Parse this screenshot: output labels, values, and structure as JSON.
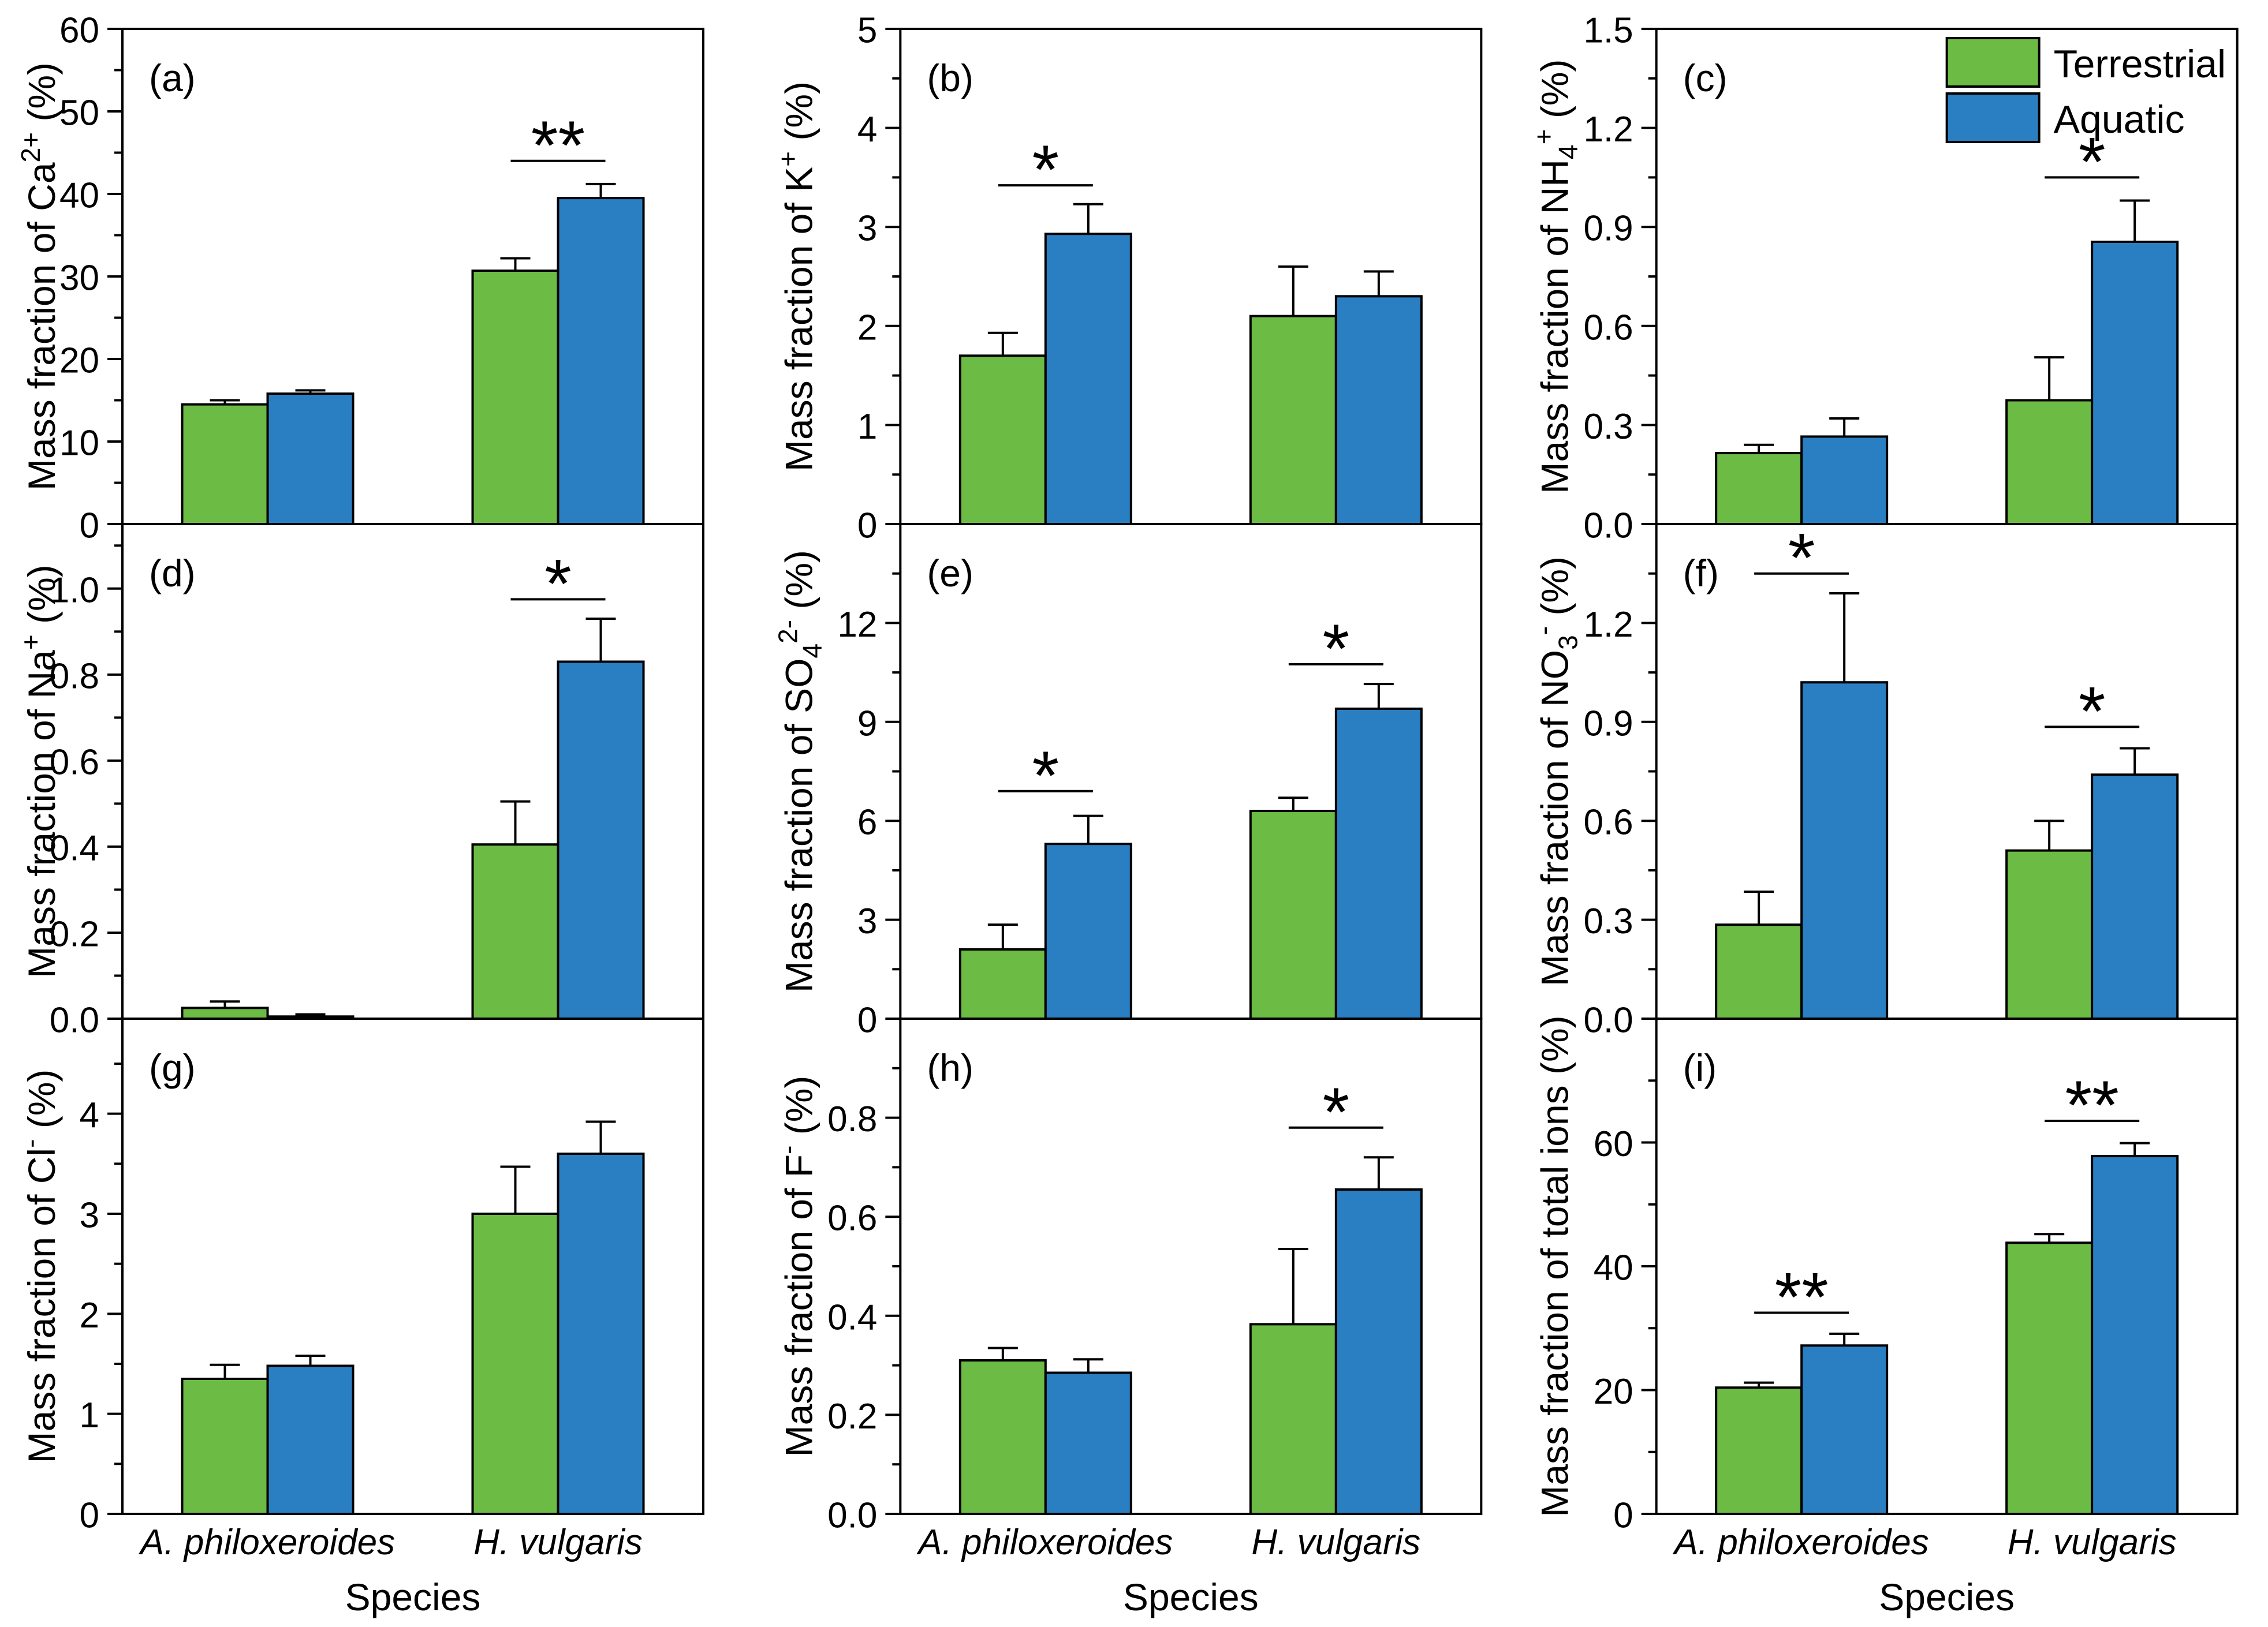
{
  "figure": {
    "xlabel": "Species",
    "categories": [
      "A. philoxeroides",
      "H. vulgaris"
    ],
    "legend": {
      "panel": "(c)",
      "entries": [
        {
          "label": "Terrestrial",
          "color": "#6CBB45"
        },
        {
          "label": "Aquatic",
          "color": "#2A7FC3"
        }
      ]
    },
    "colors": {
      "terrestrial": "#6CBB45",
      "aquatic": "#2A7FC3",
      "axis": "#000000",
      "background": "#FFFFFF"
    }
  },
  "chart_data": [
    {
      "panel": "(a)",
      "id": "ca",
      "type": "bar",
      "ylabel_segments": [
        [
          "Mass fraction of Ca",
          "normal"
        ],
        [
          "2+",
          "sup"
        ],
        [
          " (%)",
          "normal"
        ]
      ],
      "ylim": [
        0,
        60
      ],
      "ytick_values": [
        0,
        10,
        20,
        30,
        40,
        50,
        60
      ],
      "ytick_labels": [
        "0",
        "10",
        "20",
        "30",
        "40",
        "50",
        "60"
      ],
      "minor_step": 5,
      "categories": [
        "A. philoxeroides",
        "H. vulgaris"
      ],
      "series": [
        {
          "name": "Terrestrial",
          "values": [
            14.5,
            30.7
          ],
          "errors": [
            0.5,
            1.5
          ]
        },
        {
          "name": "Aquatic",
          "values": [
            15.8,
            39.5
          ],
          "errors": [
            0.4,
            1.7
          ]
        }
      ],
      "significance": [
        {
          "group": 1,
          "label": "**",
          "line_y": 44
        }
      ]
    },
    {
      "panel": "(b)",
      "id": "k",
      "type": "bar",
      "ylabel_segments": [
        [
          "Mass fraction of K",
          "normal"
        ],
        [
          "+",
          "sup"
        ],
        [
          " (%)",
          "normal"
        ]
      ],
      "ylim": [
        0,
        5
      ],
      "ytick_values": [
        0,
        1,
        2,
        3,
        4,
        5
      ],
      "ytick_labels": [
        "0",
        "1",
        "2",
        "3",
        "4",
        "5"
      ],
      "minor_step": 0.5,
      "categories": [
        "A. philoxeroides",
        "H. vulgaris"
      ],
      "series": [
        {
          "name": "Terrestrial",
          "values": [
            1.7,
            2.1
          ],
          "errors": [
            0.23,
            0.5
          ]
        },
        {
          "name": "Aquatic",
          "values": [
            2.93,
            2.3
          ],
          "errors": [
            0.3,
            0.25
          ]
        }
      ],
      "significance": [
        {
          "group": 0,
          "label": "*",
          "line_y": 3.42
        }
      ]
    },
    {
      "panel": "(c)",
      "id": "nh4",
      "type": "bar",
      "ylabel_segments": [
        [
          "Mass fraction of NH",
          "normal"
        ],
        [
          "4",
          "sub"
        ],
        [
          "+",
          "sup"
        ],
        [
          " (%)",
          "normal"
        ]
      ],
      "ylim": [
        0,
        1.5
      ],
      "ytick_values": [
        0,
        0.3,
        0.6,
        0.9,
        1.2,
        1.5
      ],
      "ytick_labels": [
        "0.0",
        "0.3",
        "0.6",
        "0.9",
        "1.2",
        "1.5"
      ],
      "minor_step": 0.15,
      "categories": [
        "A. philoxeroides",
        "H. vulgaris"
      ],
      "series": [
        {
          "name": "Terrestrial",
          "values": [
            0.215,
            0.375
          ],
          "errors": [
            0.025,
            0.13
          ]
        },
        {
          "name": "Aquatic",
          "values": [
            0.265,
            0.855
          ],
          "errors": [
            0.055,
            0.125
          ]
        }
      ],
      "significance": [
        {
          "group": 1,
          "label": "*",
          "line_y": 1.05
        }
      ]
    },
    {
      "panel": "(d)",
      "id": "na",
      "type": "bar",
      "ylabel_segments": [
        [
          "Mass fraction of Na",
          "normal"
        ],
        [
          "+",
          "sup"
        ],
        [
          " (%)",
          "normal"
        ]
      ],
      "ylim": [
        0,
        1.15
      ],
      "ytick_values": [
        0,
        0.2,
        0.4,
        0.6,
        0.8,
        1.0
      ],
      "ytick_labels": [
        "0.0",
        "0.2",
        "0.4",
        "0.6",
        "0.8",
        "1.0"
      ],
      "minor_step": 0.1,
      "categories": [
        "A. philoxeroides",
        "H. vulgaris"
      ],
      "series": [
        {
          "name": "Terrestrial",
          "values": [
            0.025,
            0.405
          ],
          "errors": [
            0.015,
            0.1
          ]
        },
        {
          "name": "Aquatic",
          "values": [
            0.005,
            0.83
          ],
          "errors": [
            0.005,
            0.1
          ]
        }
      ],
      "significance": [
        {
          "group": 1,
          "label": "*",
          "line_y": 0.975
        }
      ]
    },
    {
      "panel": "(e)",
      "id": "so4",
      "type": "bar",
      "ylabel_segments": [
        [
          "Mass fraction of SO",
          "normal"
        ],
        [
          "4",
          "sub"
        ],
        [
          "2-",
          "sup"
        ],
        [
          " (%)",
          "normal"
        ]
      ],
      "ylim": [
        0,
        15
      ],
      "ytick_values": [
        0,
        3,
        6,
        9,
        12
      ],
      "ytick_labels": [
        "0",
        "3",
        "6",
        "9",
        "12"
      ],
      "minor_step": 1.5,
      "categories": [
        "A. philoxeroides",
        "H. vulgaris"
      ],
      "series": [
        {
          "name": "Terrestrial",
          "values": [
            2.1,
            6.3
          ],
          "errors": [
            0.75,
            0.4
          ]
        },
        {
          "name": "Aquatic",
          "values": [
            5.3,
            9.4
          ],
          "errors": [
            0.85,
            0.75
          ]
        }
      ],
      "significance": [
        {
          "group": 0,
          "label": "*",
          "line_y": 6.9
        },
        {
          "group": 1,
          "label": "*",
          "line_y": 10.75
        }
      ]
    },
    {
      "panel": "(f)",
      "id": "no3",
      "type": "bar",
      "ylabel_segments": [
        [
          "Mass fraction of NO",
          "normal"
        ],
        [
          "3",
          "sub"
        ],
        [
          "-",
          "sup"
        ],
        [
          " (%)",
          "normal"
        ]
      ],
      "ylim": [
        0,
        1.5
      ],
      "ytick_values": [
        0,
        0.3,
        0.6,
        0.9,
        1.2
      ],
      "ytick_labels": [
        "0.0",
        "0.3",
        "0.6",
        "0.9",
        "1.2"
      ],
      "minor_step": 0.15,
      "categories": [
        "A. philoxeroides",
        "H. vulgaris"
      ],
      "series": [
        {
          "name": "Terrestrial",
          "values": [
            0.285,
            0.51
          ],
          "errors": [
            0.1,
            0.09
          ]
        },
        {
          "name": "Aquatic",
          "values": [
            1.02,
            0.74
          ],
          "errors": [
            0.27,
            0.08
          ]
        }
      ],
      "significance": [
        {
          "group": 0,
          "label": "*",
          "line_y": 1.35
        },
        {
          "group": 1,
          "label": "*",
          "line_y": 0.885
        }
      ]
    },
    {
      "panel": "(g)",
      "id": "cl",
      "type": "bar",
      "ylabel_segments": [
        [
          "Mass fraction of Cl",
          "normal"
        ],
        [
          "-",
          "sup"
        ],
        [
          " (%)",
          "normal"
        ]
      ],
      "ylim": [
        0,
        4.95
      ],
      "ytick_values": [
        0,
        1,
        2,
        3,
        4
      ],
      "ytick_labels": [
        "0",
        "1",
        "2",
        "3",
        "4"
      ],
      "minor_step": 0.5,
      "categories": [
        "A. philoxeroides",
        "H. vulgaris"
      ],
      "series": [
        {
          "name": "Terrestrial",
          "values": [
            1.35,
            3.0
          ],
          "errors": [
            0.14,
            0.47
          ]
        },
        {
          "name": "Aquatic",
          "values": [
            1.48,
            3.6
          ],
          "errors": [
            0.1,
            0.32
          ]
        }
      ],
      "significance": []
    },
    {
      "panel": "(h)",
      "id": "f",
      "type": "bar",
      "ylabel_segments": [
        [
          "Mass fraction of F",
          "normal"
        ],
        [
          "-",
          "sup"
        ],
        [
          " (%)",
          "normal"
        ]
      ],
      "ylim": [
        0,
        1.0
      ],
      "ytick_values": [
        0,
        0.2,
        0.4,
        0.6,
        0.8
      ],
      "ytick_labels": [
        "0.0",
        "0.2",
        "0.4",
        "0.6",
        "0.8"
      ],
      "minor_step": 0.1,
      "categories": [
        "A. philoxeroides",
        "H. vulgaris"
      ],
      "series": [
        {
          "name": "Terrestrial",
          "values": [
            0.31,
            0.383
          ],
          "errors": [
            0.025,
            0.152
          ]
        },
        {
          "name": "Aquatic",
          "values": [
            0.285,
            0.655
          ],
          "errors": [
            0.027,
            0.065
          ]
        }
      ],
      "significance": [
        {
          "group": 1,
          "label": "*",
          "line_y": 0.78
        }
      ]
    },
    {
      "panel": "(i)",
      "id": "total",
      "type": "bar",
      "ylabel_segments": [
        [
          "Mass fraction of total ions (%)",
          "normal"
        ]
      ],
      "ylim": [
        0,
        80
      ],
      "ytick_values": [
        0,
        20,
        40,
        60
      ],
      "ytick_labels": [
        "0",
        "20",
        "40",
        "60"
      ],
      "minor_step": 10,
      "categories": [
        "A. philoxeroides",
        "H. vulgaris"
      ],
      "series": [
        {
          "name": "Terrestrial",
          "values": [
            20.4,
            43.8
          ],
          "errors": [
            0.8,
            1.4
          ]
        },
        {
          "name": "Aquatic",
          "values": [
            27.2,
            57.8
          ],
          "errors": [
            1.9,
            2.1
          ]
        }
      ],
      "significance": [
        {
          "group": 0,
          "label": "**",
          "line_y": 32.5
        },
        {
          "group": 1,
          "label": "**",
          "line_y": 63.5
        }
      ]
    }
  ]
}
